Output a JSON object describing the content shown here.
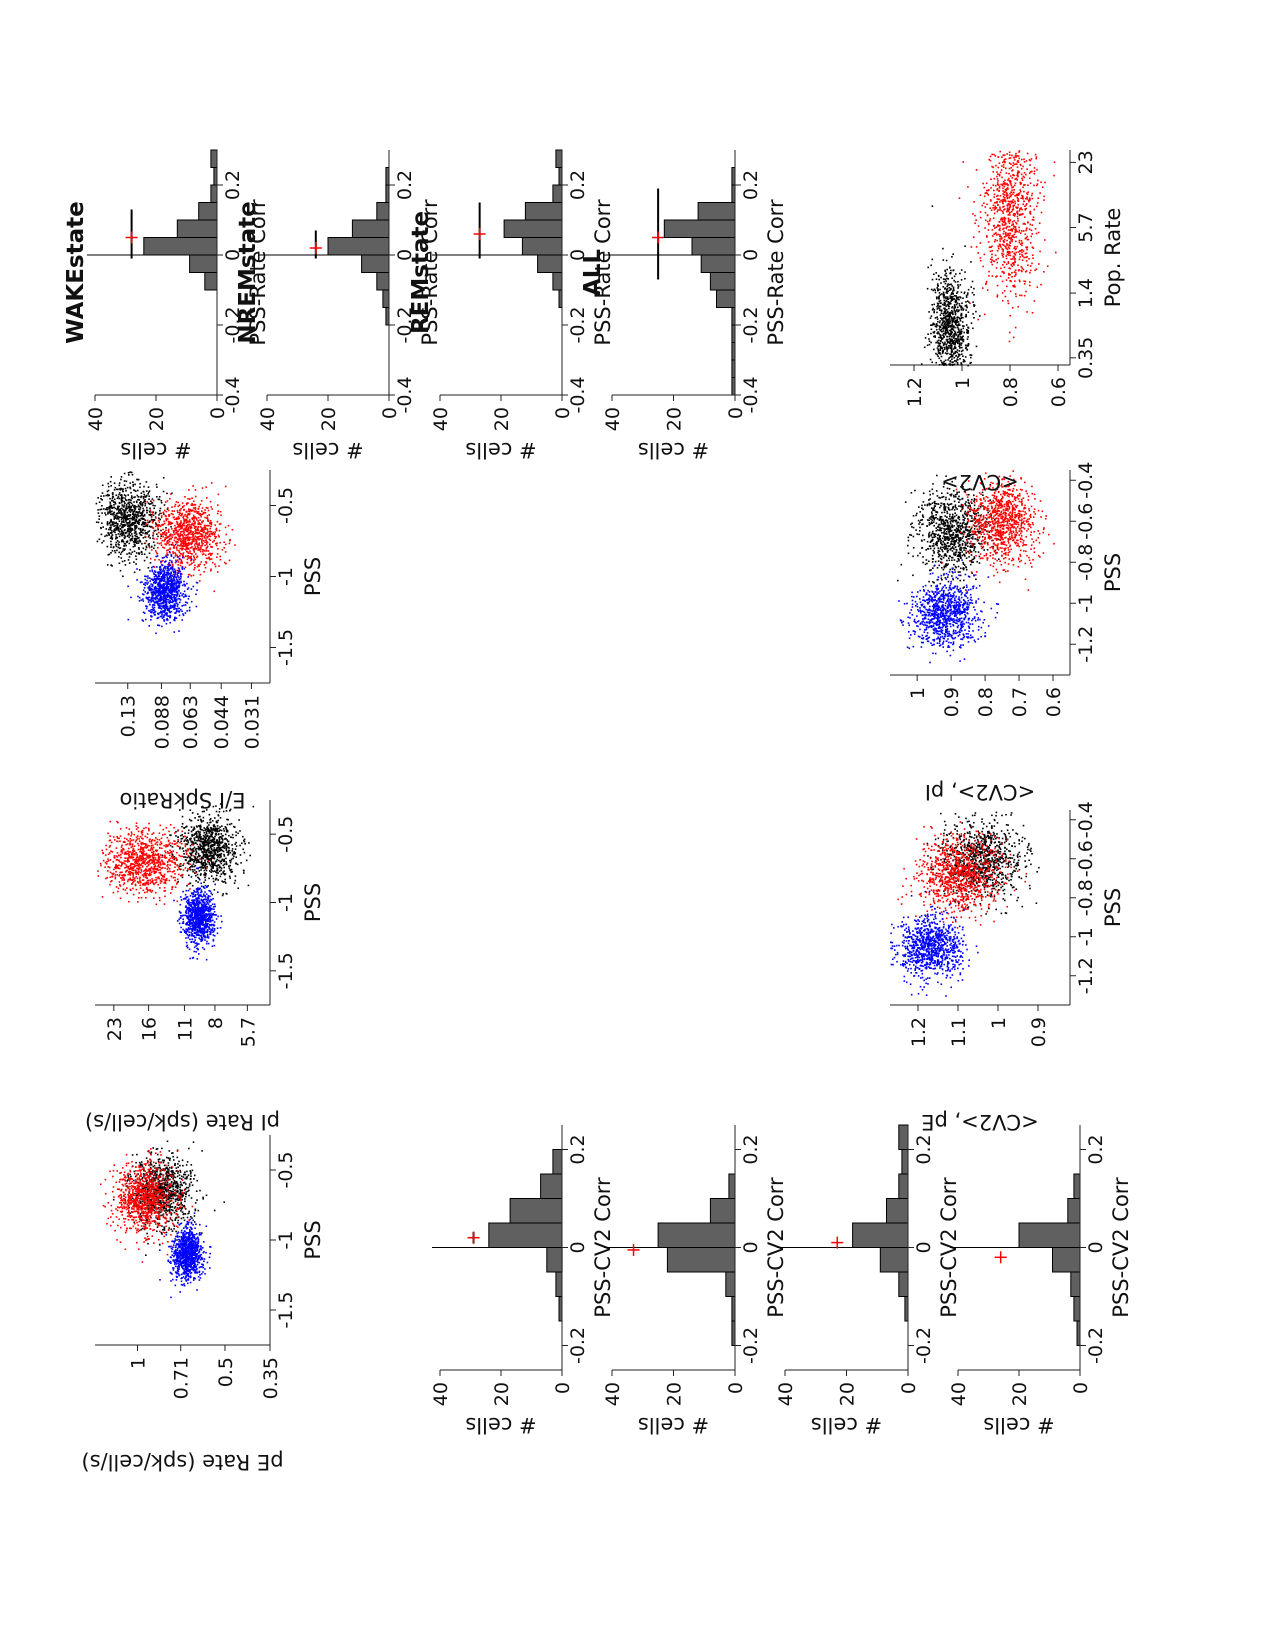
{
  "colors": {
    "wake": "#000000",
    "nrem": "#0000ff",
    "rem": "#ff0000",
    "bar": "#606060",
    "mean": "#ff0000"
  },
  "chart_data": [
    {
      "id": "pe_rate",
      "type": "scatter",
      "xlabel": "PSS",
      "ylabel": "pE Rate (spk/cell/s)",
      "xticks": [
        "-1.5",
        "-1",
        "-0.5"
      ],
      "yticks": [
        "1",
        "0.71",
        "0.5",
        "0.35"
      ],
      "xlim": [
        -1.75,
        -0.25
      ],
      "ylim_log": [
        0.35,
        1.4
      ],
      "log_y": true,
      "clusters": [
        {
          "state": "WAKE",
          "color": "#000000",
          "center": [
            -0.65,
            0.82
          ],
          "spread": [
            0.13,
            0.12
          ],
          "n": 900
        },
        {
          "state": "REM",
          "color": "#ff0000",
          "center": [
            -0.7,
            0.95
          ],
          "spread": [
            0.12,
            0.12
          ],
          "n": 900
        },
        {
          "state": "NREM",
          "color": "#0000ff",
          "center": [
            -1.1,
            0.68
          ],
          "spread": [
            0.09,
            0.06
          ],
          "n": 900
        }
      ]
    },
    {
      "id": "pi_rate",
      "type": "scatter",
      "xlabel": "PSS",
      "ylabel": "pI Rate (spk/cell/s)",
      "xticks": [
        "-1.5",
        "-1",
        "-0.5"
      ],
      "yticks": [
        "23",
        "16",
        "11",
        "8",
        "5.7"
      ],
      "xlim": [
        -1.75,
        -0.25
      ],
      "ylim_log": [
        4.5,
        28
      ],
      "log_y": true,
      "clusters": [
        {
          "state": "WAKE",
          "color": "#000000",
          "center": [
            -0.6,
            8.5
          ],
          "spread": [
            0.12,
            0.15
          ],
          "n": 900
        },
        {
          "state": "REM",
          "color": "#ff0000",
          "center": [
            -0.7,
            17
          ],
          "spread": [
            0.12,
            0.2
          ],
          "n": 900
        },
        {
          "state": "NREM",
          "color": "#0000ff",
          "center": [
            -1.1,
            9.5
          ],
          "spread": [
            0.1,
            0.08
          ],
          "n": 900
        }
      ]
    },
    {
      "id": "ei_ratio",
      "type": "scatter",
      "xlabel": "PSS",
      "ylabel": "E/I SpkRatio",
      "xticks": [
        "-1.5",
        "-1",
        "-0.5"
      ],
      "yticks": [
        "0.13",
        "0.088",
        "0.063",
        "0.044",
        "0.031"
      ],
      "xlim": [
        -1.75,
        -0.25
      ],
      "ylim_log": [
        0.025,
        0.19
      ],
      "log_y": true,
      "clusters": [
        {
          "state": "WAKE",
          "color": "#000000",
          "center": [
            -0.6,
            0.13
          ],
          "spread": [
            0.13,
            0.18
          ],
          "n": 900
        },
        {
          "state": "REM",
          "color": "#ff0000",
          "center": [
            -0.7,
            0.065
          ],
          "spread": [
            0.12,
            0.2
          ],
          "n": 900
        },
        {
          "state": "NREM",
          "color": "#0000ff",
          "center": [
            -1.1,
            0.085
          ],
          "spread": [
            0.1,
            0.12
          ],
          "n": 900
        }
      ]
    },
    {
      "id": "cv2_pe",
      "type": "scatter",
      "xlabel": "PSS",
      "ylabel": "<CV2>, pE",
      "xticks": [
        "-1.2",
        "-1",
        "-0.8",
        "-0.6",
        "-0.4"
      ],
      "yticks": [
        "1.2",
        "1.1",
        "1",
        "0.9"
      ],
      "xlim": [
        -1.35,
        -0.35
      ],
      "ylim": [
        0.82,
        1.27
      ],
      "clusters": [
        {
          "state": "WAKE",
          "color": "#000000",
          "center": [
            -0.6,
            1.04
          ],
          "spread": [
            0.1,
            0.05
          ],
          "n": 900
        },
        {
          "state": "REM",
          "color": "#ff0000",
          "center": [
            -0.68,
            1.1
          ],
          "spread": [
            0.1,
            0.05
          ],
          "n": 900
        },
        {
          "state": "NREM",
          "color": "#0000ff",
          "center": [
            -1.05,
            1.17
          ],
          "spread": [
            0.08,
            0.04
          ],
          "n": 900
        }
      ]
    },
    {
      "id": "cv2_pi",
      "type": "scatter",
      "xlabel": "PSS",
      "ylabel": "<CV2>, pI",
      "xticks": [
        "-1.2",
        "-1",
        "-0.8",
        "-0.6",
        "-0.4"
      ],
      "yticks": [
        "1",
        "0.9",
        "0.8",
        "0.7",
        "0.6"
      ],
      "xlim": [
        -1.35,
        -0.35
      ],
      "ylim": [
        0.55,
        1.08
      ],
      "clusters": [
        {
          "state": "WAKE",
          "color": "#000000",
          "center": [
            -0.65,
            0.9
          ],
          "spread": [
            0.1,
            0.05
          ],
          "n": 900
        },
        {
          "state": "REM",
          "color": "#ff0000",
          "center": [
            -0.6,
            0.75
          ],
          "spread": [
            0.1,
            0.05
          ],
          "n": 900
        },
        {
          "state": "NREM",
          "color": "#0000ff",
          "center": [
            -1.05,
            0.92
          ],
          "spread": [
            0.08,
            0.05
          ],
          "n": 900
        }
      ]
    },
    {
      "id": "cv2_rate",
      "type": "scatter",
      "xlabel": "Pop. Rate",
      "ylabel": "<CV2>",
      "xticks": [
        "0.35",
        "1.4",
        "5.7",
        "23"
      ],
      "yticks": [
        "1.2",
        "1",
        "0.8",
        "0.6"
      ],
      "xlim_log": [
        0.3,
        30
      ],
      "log_x": true,
      "ylim": [
        0.55,
        1.3
      ],
      "clusters": [
        {
          "state": "WAKE",
          "color": "#000000",
          "center": [
            0.7,
            1.05
          ],
          "spread": [
            0.2,
            0.04
          ],
          "n": 900
        },
        {
          "state": "REM",
          "color": "#ff0000",
          "center": [
            8,
            0.8
          ],
          "spread": [
            0.3,
            0.06
          ],
          "n": 900
        }
      ]
    },
    {
      "id": "hist_rate",
      "type": "bar",
      "xlabel": "PSS-Rate Corr",
      "ylabel": "# cells",
      "xticks": [
        "-0.4",
        "-0.2",
        "0",
        "0.2"
      ],
      "yticks": [
        "40",
        "20",
        "0"
      ],
      "xlim": [
        -0.4,
        0.3
      ],
      "ylim": [
        0,
        40
      ],
      "bin_edges": [
        -0.4,
        -0.35,
        -0.3,
        -0.25,
        -0.2,
        -0.15,
        -0.1,
        -0.05,
        0,
        0.05,
        0.1,
        0.15,
        0.2,
        0.25,
        0.3
      ],
      "panels": [
        {
          "title": "WAKEstate",
          "counts": [
            0,
            0,
            0,
            0,
            0,
            0,
            4,
            9,
            24,
            13,
            6,
            2,
            1,
            2
          ],
          "mean": 0.06,
          "spread": 0.07,
          "mean_y": 28,
          "mean_red": 0.05
        },
        {
          "title": "NREMstate",
          "counts": [
            0,
            0,
            0,
            0,
            1,
            2,
            4,
            9,
            20,
            12,
            4,
            1,
            1,
            0
          ],
          "mean": 0.03,
          "spread": 0.04,
          "mean_y": 24,
          "mean_red": 0.02
        },
        {
          "title": "REMstate",
          "counts": [
            0,
            0,
            0,
            0,
            0,
            1,
            3,
            8,
            13,
            19,
            12,
            3,
            1,
            2
          ],
          "mean": 0.07,
          "spread": 0.08,
          "mean_y": 27,
          "mean_red": 0.06
        },
        {
          "title": "ALL",
          "counts": [
            1,
            1,
            1,
            1,
            1,
            6,
            8,
            11,
            14,
            23,
            12,
            1,
            1,
            0
          ],
          "mean": 0.06,
          "spread": 0.13,
          "mean_y": 25,
          "mean_red": 0.05
        }
      ]
    },
    {
      "id": "hist_cv2",
      "type": "bar",
      "xlabel": "PSS-CV2 Corr",
      "ylabel": "# cells",
      "xticks": [
        "-0.2",
        "0",
        "0.2"
      ],
      "yticks": [
        "40",
        "20",
        "0"
      ],
      "xlim": [
        -0.25,
        0.25
      ],
      "ylim": [
        0,
        40
      ],
      "bin_edges": [
        -0.25,
        -0.2,
        -0.15,
        -0.1,
        -0.05,
        0,
        0.05,
        0.1,
        0.15,
        0.2,
        0.25
      ],
      "panels": [
        {
          "counts": [
            0,
            0,
            1,
            2,
            5,
            24,
            17,
            7,
            3,
            0
          ],
          "mean": 0.02,
          "spread": 0.012,
          "mean_y": 29,
          "mean_red": 0.02
        },
        {
          "counts": [
            0,
            1,
            1,
            3,
            22,
            25,
            8,
            2,
            0,
            0
          ],
          "mean": -0.005,
          "spread": 0.0,
          "mean_y": 33,
          "mean_red": -0.005
        },
        {
          "counts": [
            0,
            0,
            1,
            3,
            9,
            18,
            7,
            3,
            2,
            3
          ],
          "mean": 0.01,
          "spread": 0.0,
          "mean_y": 23,
          "mean_red": 0.01
        },
        {
          "counts": [
            0,
            1,
            2,
            3,
            9,
            20,
            4,
            2,
            0,
            0
          ],
          "mean": -0.02,
          "spread": 0.0,
          "mean_y": 26,
          "mean_red": -0.02
        }
      ]
    }
  ]
}
